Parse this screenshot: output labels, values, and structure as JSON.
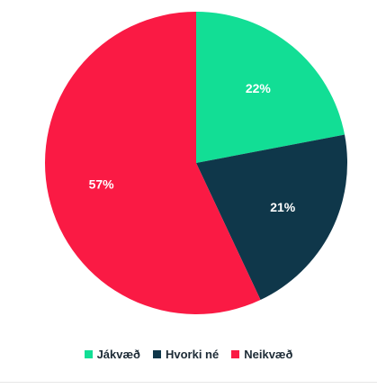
{
  "colors": {
    "positive": "#12de95",
    "neutral": "#0f374a",
    "negative": "#fa1a44"
  },
  "chart_data": {
    "type": "pie",
    "title": "",
    "legend_position": "bottom",
    "start_angle_deg": 0,
    "direction": "clockwise",
    "slices": [
      {
        "name": "Jákvæð",
        "value": 22,
        "label": "22%",
        "color": "#12de95"
      },
      {
        "name": "Hvorki né",
        "value": 21,
        "label": "21%",
        "color": "#0f374a"
      },
      {
        "name": "Neikvæð",
        "value": 57,
        "label": "57%",
        "color": "#fa1a44"
      }
    ]
  }
}
